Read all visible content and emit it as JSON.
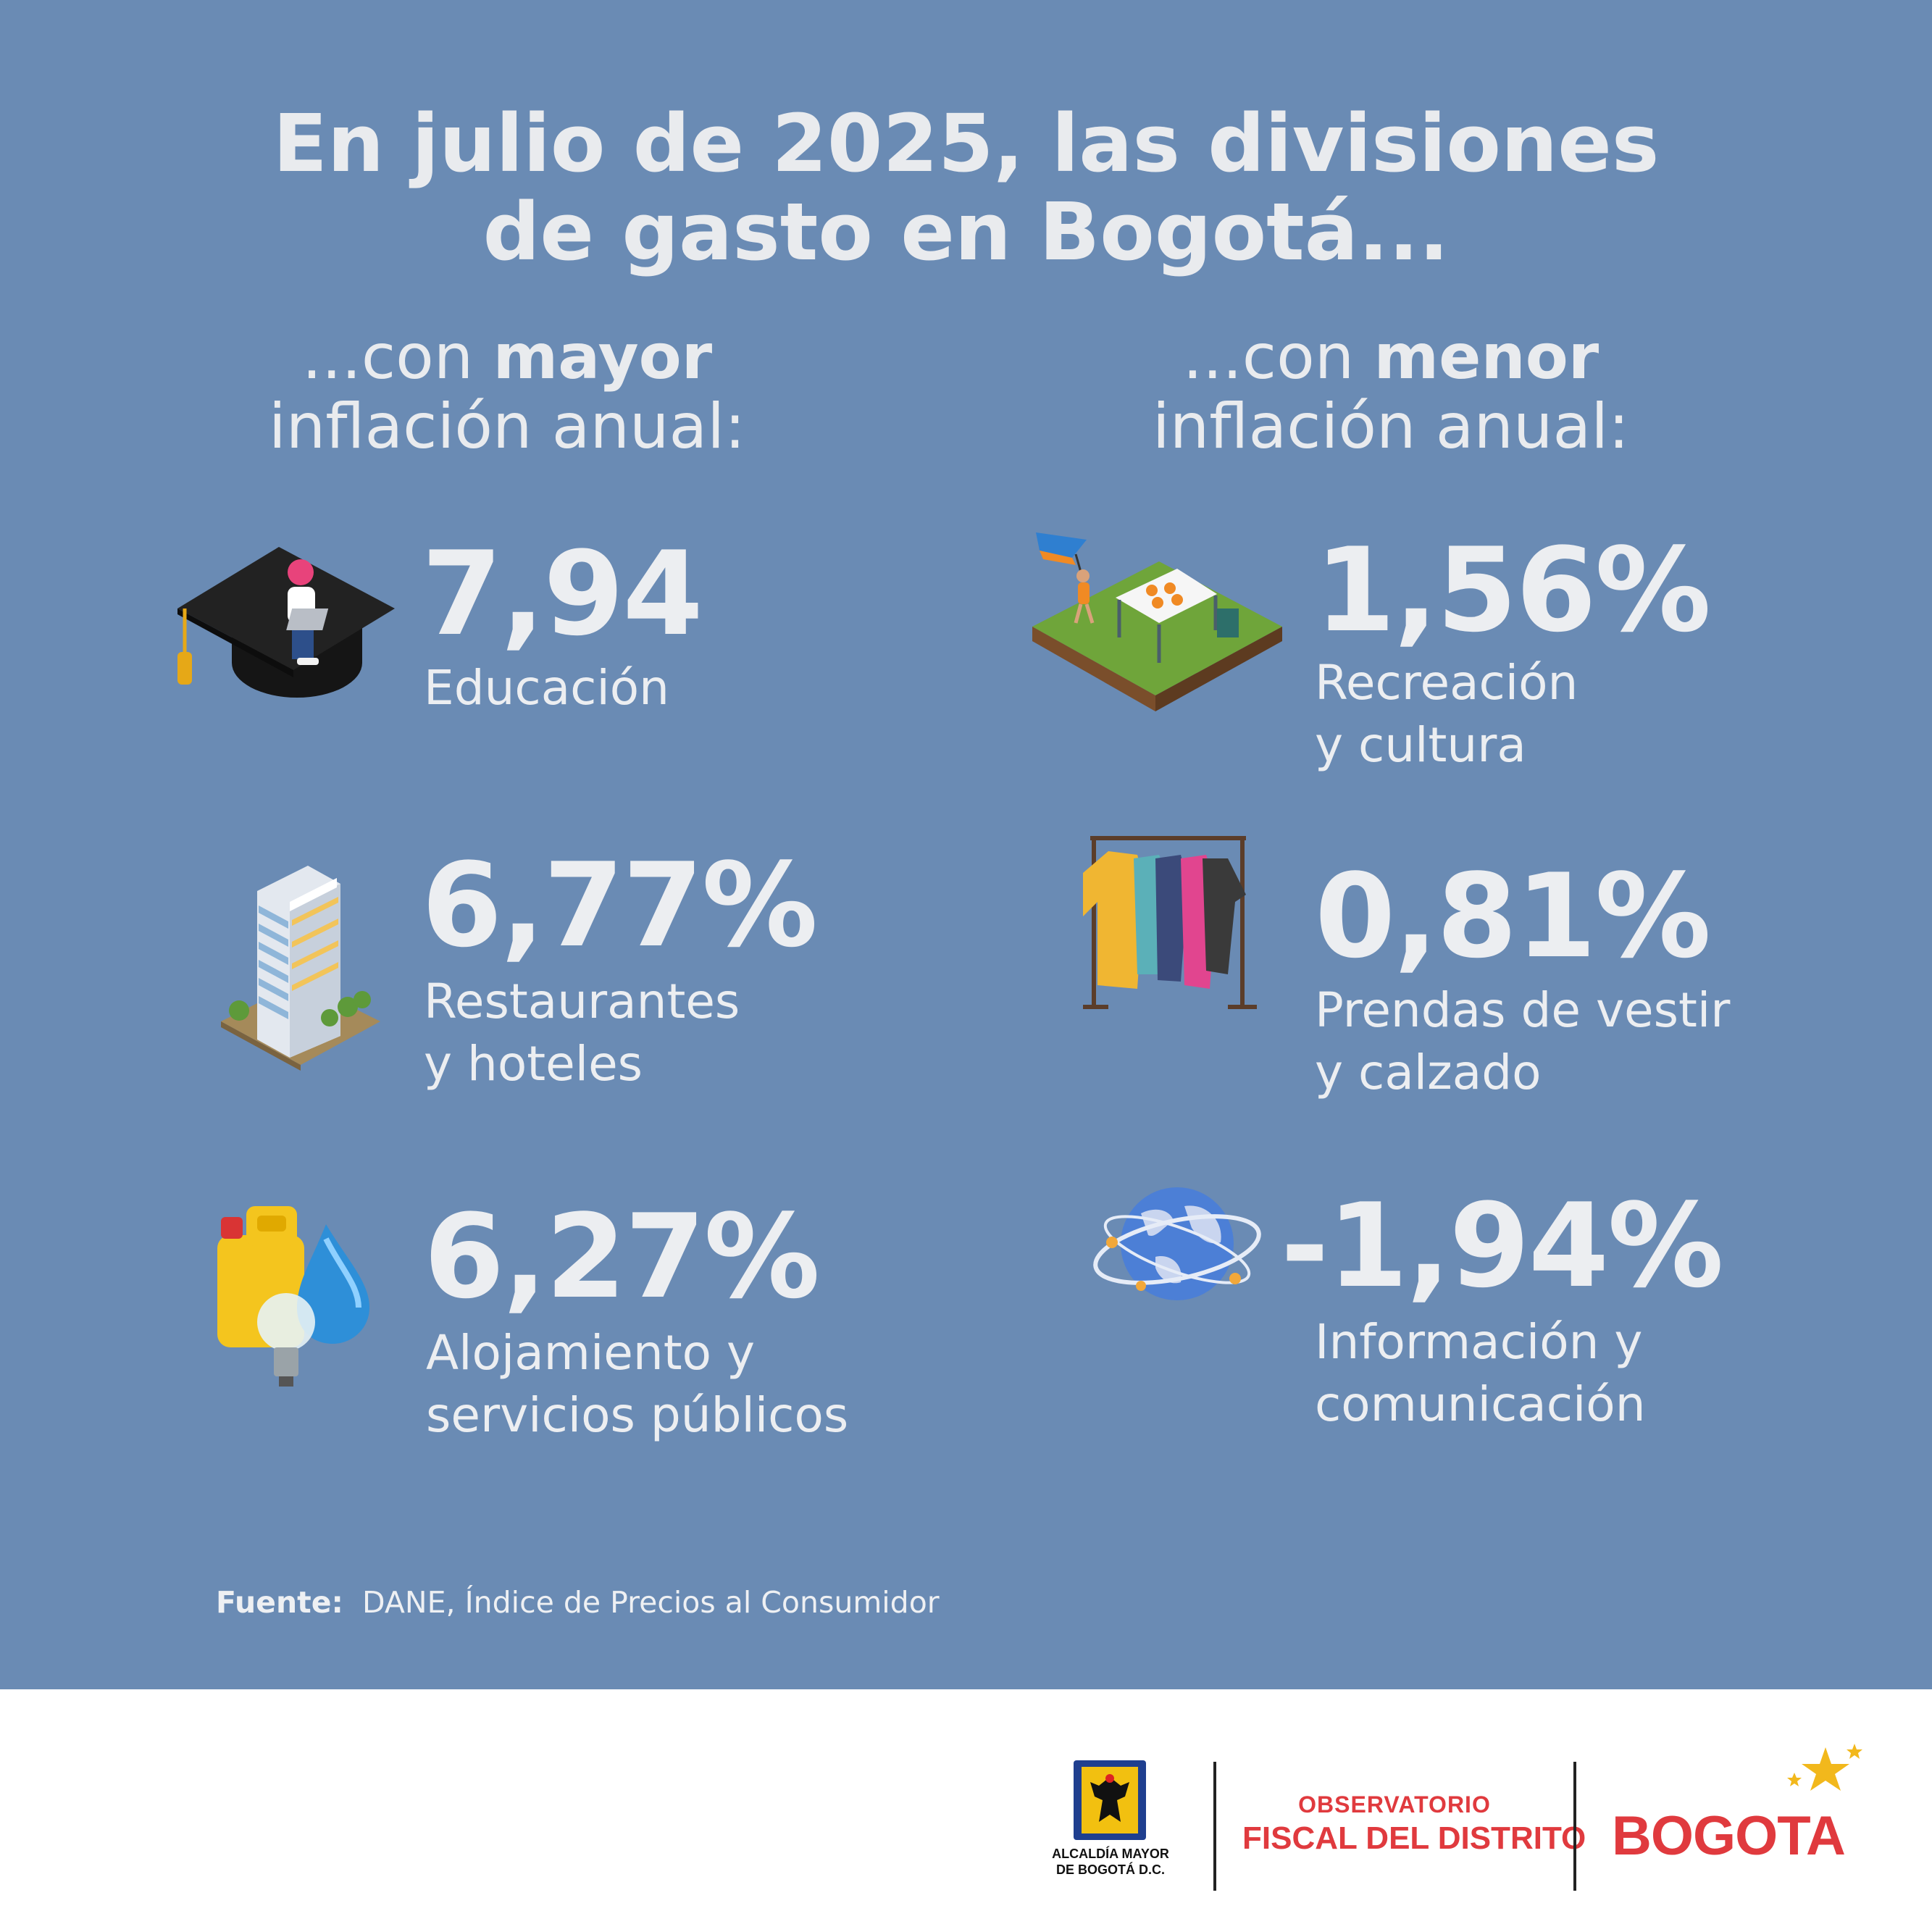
{
  "title": {
    "line1": "En julio de 2025, las divisiones",
    "line2": "de gasto en Bogotá..."
  },
  "left": {
    "header": {
      "prefix": "...con ",
      "bold": "mayor",
      "line2": "inflación anual:"
    },
    "items": [
      {
        "value": "7,94",
        "label_lines": [
          "Educación"
        ],
        "icon": "graduation-cap-icon"
      },
      {
        "value": "6,77%",
        "label_lines": [
          "Restaurantes",
          "y hoteles"
        ],
        "icon": "hotel-icon"
      },
      {
        "value": "6,27%",
        "label_lines": [
          "Alojamiento y",
          "servicios públicos"
        ],
        "icon": "utilities-icon"
      }
    ]
  },
  "right": {
    "header": {
      "prefix": "...con ",
      "bold": "menor",
      "line2": "inflación anual:"
    },
    "items": [
      {
        "value": "1,56%",
        "label_lines": [
          "Recreación",
          "y cultura"
        ],
        "icon": "park-icon"
      },
      {
        "value": "0,81%",
        "label_lines": [
          "Prendas de vestir",
          "y calzado"
        ],
        "icon": "clothing-rack-icon"
      },
      {
        "value": "-1,94%",
        "label_lines": [
          "Información y",
          "comunicación"
        ],
        "icon": "globe-icon"
      }
    ]
  },
  "source": {
    "label": "Fuente:",
    "text": "DANE, Índice de Precios al Consumidor"
  },
  "footer": {
    "alcaldia": {
      "line1": "ALCALDÍA MAYOR",
      "line2": "DE BOGOTÁ D.C."
    },
    "observatorio": {
      "line1": "OBSERVATORIO",
      "line2": "FISCAL DEL DISTRITO"
    },
    "brand": "BOGOTA"
  },
  "colors": {
    "background": "#6a8bb4",
    "text": "#eceef1",
    "brand_red": "#e03a3e"
  }
}
